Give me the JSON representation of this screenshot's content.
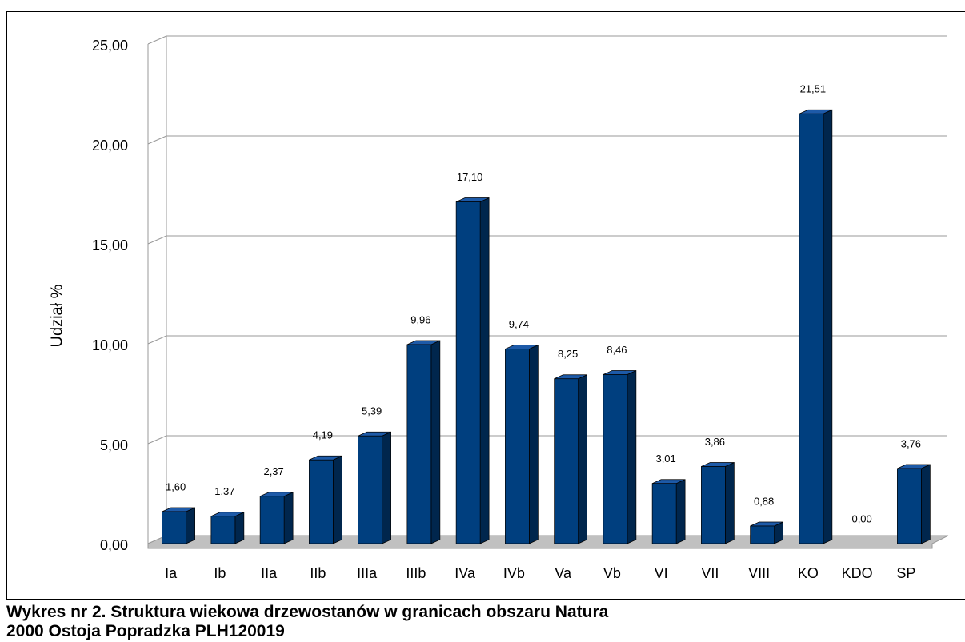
{
  "chart_data": {
    "type": "bar3d",
    "caption": "Wykres nr 2. Struktura wiekowa drzewostanów w granicach obszaru Natura 2000 Ostoja Popradzka PLH120019",
    "ylabel": "Udział %",
    "categories": [
      "Ia",
      "Ib",
      "IIa",
      "IIb",
      "IIIa",
      "IIIb",
      "IVa",
      "IVb",
      "Va",
      "Vb",
      "VI",
      "VII",
      "VIII",
      "KO",
      "KDO",
      "SP"
    ],
    "values": [
      1.6,
      1.37,
      2.37,
      4.19,
      5.39,
      9.96,
      17.1,
      9.74,
      8.25,
      8.46,
      3.01,
      3.86,
      0.88,
      21.51,
      0.0,
      3.76
    ],
    "value_labels": [
      "1,60",
      "1,37",
      "2,37",
      "4,19",
      "5,39",
      "9,96",
      "17,10",
      "9,74",
      "8,25",
      "8,46",
      "3,01",
      "3,86",
      "0,88",
      "21,51",
      "0,00",
      "3,76"
    ],
    "color": "#003f7f",
    "ylim": [
      0,
      25
    ],
    "yticks": [
      {
        "value": 0,
        "label": "0,00"
      },
      {
        "value": 5,
        "label": "5,00"
      },
      {
        "value": 10,
        "label": "10,00"
      },
      {
        "value": 15,
        "label": "15,00"
      },
      {
        "value": 20,
        "label": "20,00"
      },
      {
        "value": 25,
        "label": "25,00"
      }
    ],
    "grid": true
  }
}
